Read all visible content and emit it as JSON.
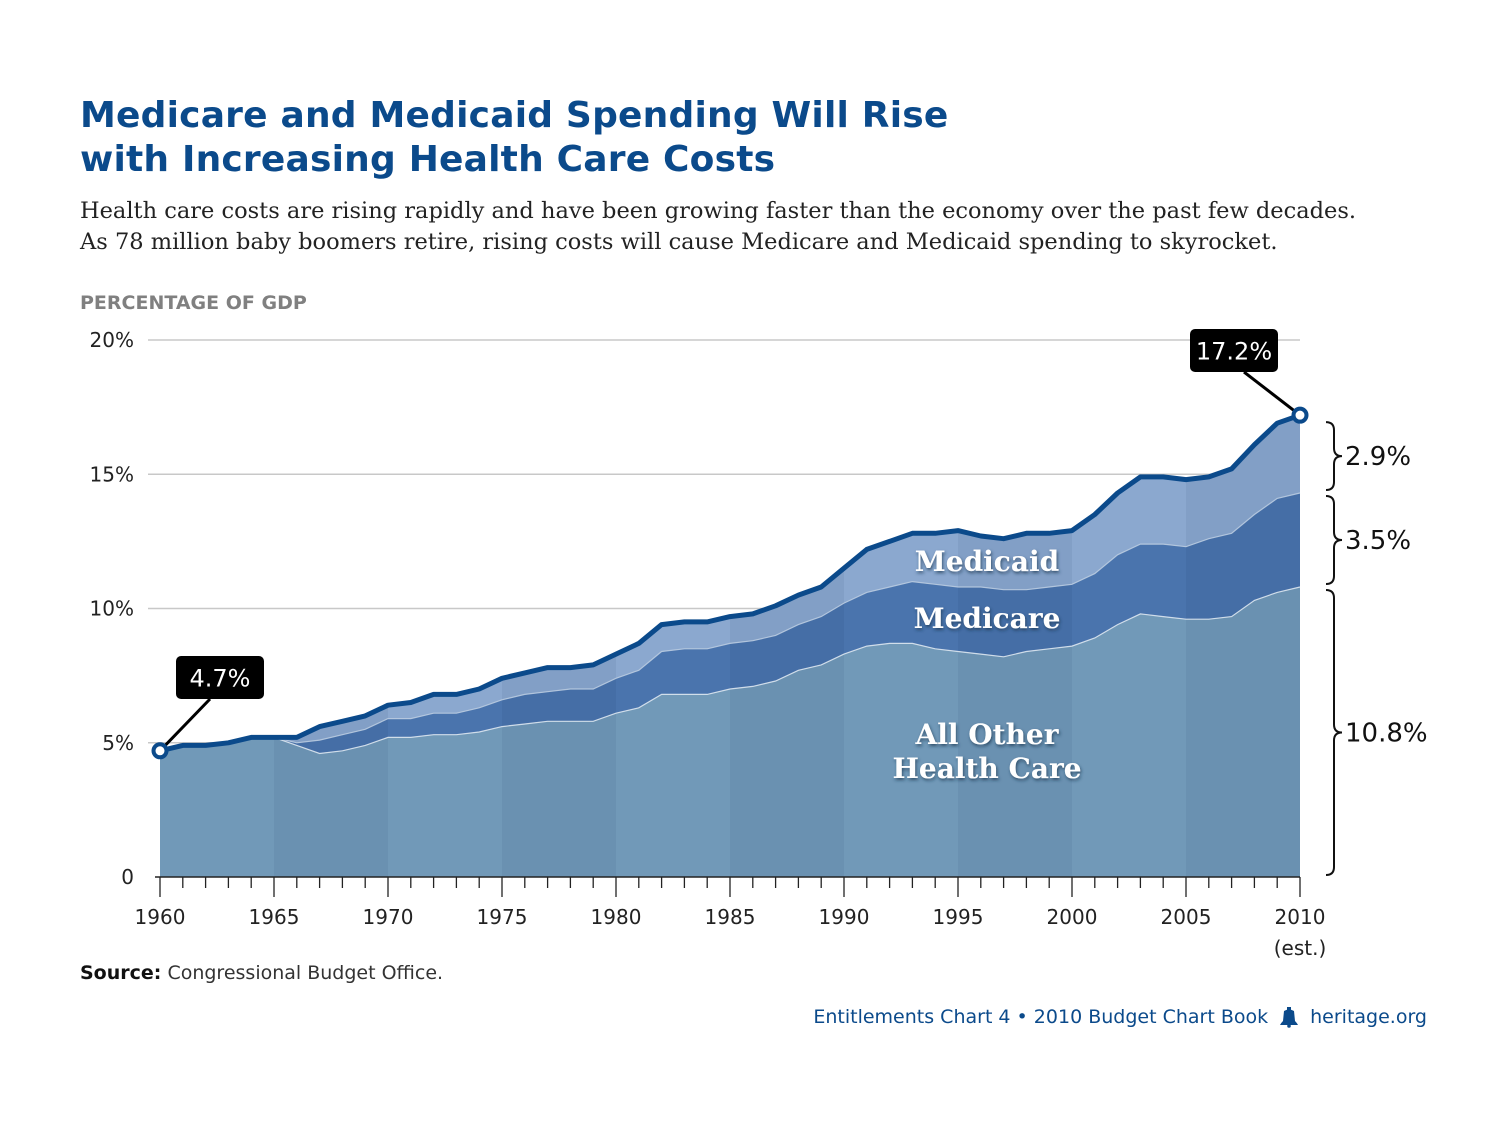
{
  "title_lines": [
    "Medicare and Medicaid Spending Will Rise",
    "with Increasing Health Care Costs"
  ],
  "subtitle_lines": [
    "Health care costs are rising rapidly and have been growing faster than the economy over the past few decades.",
    "As 78 million baby boomers retire, rising costs will cause Medicare and Medicaid spending to skyrocket."
  ],
  "source": {
    "label": "Source:",
    "text": "Congressional Budget Office."
  },
  "footer": {
    "left": "Entitlements Chart 4 • 2010 Budget Chart Book",
    "right": "heritage.org",
    "icon": "liberty-bell-icon"
  },
  "colors": {
    "title": "#0b4a8b",
    "other": "#7199b8",
    "other_band": "#6790b0",
    "medicare": "#4a74ad",
    "medicaid": "#8ba8cf",
    "top_line": "#0b4a8b",
    "grid": "#c8c8c8"
  },
  "chart_data": {
    "type": "area",
    "ylabel": "PERCENTAGE OF GDP",
    "ylim": [
      0,
      20
    ],
    "yticks": [
      0,
      5,
      10,
      15,
      20
    ],
    "ytick_labels": [
      "0",
      "5%",
      "10%",
      "15%",
      "20%"
    ],
    "xticks": [
      1960,
      1965,
      1970,
      1975,
      1980,
      1985,
      1990,
      1995,
      2000,
      2005,
      2010
    ],
    "xtick_labels": [
      "1960",
      "1965",
      "1970",
      "1975",
      "1980",
      "1985",
      "1990",
      "1995",
      "2000",
      "2005",
      "2010"
    ],
    "last_tick_note": "(est.)",
    "x": [
      1960,
      1961,
      1962,
      1963,
      1964,
      1965,
      1966,
      1967,
      1968,
      1969,
      1970,
      1971,
      1972,
      1973,
      1974,
      1975,
      1976,
      1977,
      1978,
      1979,
      1980,
      1981,
      1982,
      1983,
      1984,
      1985,
      1986,
      1987,
      1988,
      1989,
      1990,
      1991,
      1992,
      1993,
      1994,
      1995,
      1996,
      1997,
      1998,
      1999,
      2000,
      2001,
      2002,
      2003,
      2004,
      2005,
      2006,
      2007,
      2008,
      2009,
      2010
    ],
    "series": [
      {
        "name": "All Other Health Care",
        "values": [
          4.7,
          4.9,
          4.9,
          5.0,
          5.2,
          5.2,
          4.9,
          4.6,
          4.7,
          4.9,
          5.2,
          5.2,
          5.3,
          5.3,
          5.4,
          5.6,
          5.7,
          5.8,
          5.8,
          5.8,
          6.1,
          6.3,
          6.8,
          6.8,
          6.8,
          7.0,
          7.1,
          7.3,
          7.7,
          7.9,
          8.3,
          8.6,
          8.7,
          8.7,
          8.5,
          8.4,
          8.3,
          8.2,
          8.4,
          8.5,
          8.6,
          8.9,
          9.4,
          9.8,
          9.7,
          9.6,
          9.6,
          9.7,
          10.3,
          10.6,
          10.8
        ]
      },
      {
        "name": "Medicare",
        "values": [
          0,
          0,
          0,
          0,
          0,
          0,
          0.1,
          0.5,
          0.6,
          0.6,
          0.7,
          0.7,
          0.8,
          0.8,
          0.9,
          1.0,
          1.1,
          1.1,
          1.2,
          1.2,
          1.3,
          1.4,
          1.6,
          1.7,
          1.7,
          1.7,
          1.7,
          1.7,
          1.7,
          1.8,
          1.9,
          2.0,
          2.1,
          2.3,
          2.4,
          2.4,
          2.5,
          2.5,
          2.3,
          2.3,
          2.3,
          2.4,
          2.6,
          2.6,
          2.7,
          2.7,
          3.0,
          3.1,
          3.2,
          3.5,
          3.5
        ]
      },
      {
        "name": "Medicaid",
        "values": [
          0,
          0,
          0,
          0,
          0,
          0,
          0.2,
          0.5,
          0.5,
          0.5,
          0.5,
          0.6,
          0.7,
          0.7,
          0.7,
          0.8,
          0.8,
          0.9,
          0.8,
          0.9,
          0.9,
          1.0,
          1.0,
          1.0,
          1.0,
          1.0,
          1.0,
          1.1,
          1.1,
          1.1,
          1.3,
          1.6,
          1.7,
          1.8,
          1.9,
          2.1,
          1.9,
          1.9,
          2.1,
          2.0,
          2.0,
          2.2,
          2.3,
          2.5,
          2.5,
          2.5,
          2.3,
          2.4,
          2.6,
          2.8,
          2.9
        ]
      }
    ],
    "totals": {
      "1960": 4.7,
      "2010": 17.2
    },
    "callouts": [
      {
        "label": "4.7%",
        "year": 1960,
        "value": 4.7
      },
      {
        "label": "17.2%",
        "year": 2010,
        "value": 17.2
      }
    ],
    "brackets": [
      {
        "label": "2.9%",
        "series": "Medicaid",
        "value": 2.9
      },
      {
        "label": "3.5%",
        "series": "Medicare",
        "value": 3.5
      },
      {
        "label": "10.8%",
        "series": "All Other Health Care",
        "value": 10.8
      }
    ],
    "area_labels": {
      "medicaid": "Medicaid",
      "medicare": "Medicare",
      "other_line1": "All Other",
      "other_line2": "Health Care"
    },
    "grid": true,
    "legend": "none"
  }
}
